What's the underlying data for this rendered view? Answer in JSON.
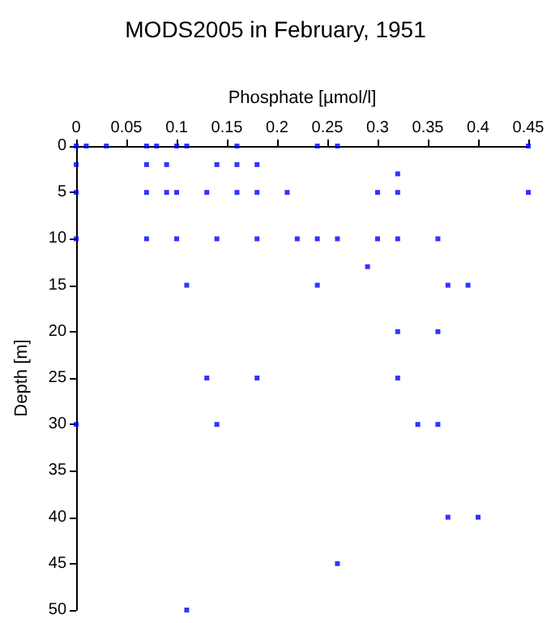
{
  "chart_data": {
    "type": "scatter",
    "title": "MODS2005 in February, 1951",
    "xlabel": "Phosphate [µmol/l]",
    "ylabel": "Depth [m]",
    "x": [
      0,
      0.01,
      0.03,
      0.07,
      0.08,
      0.1,
      0.11,
      0.16,
      0.24,
      0.26,
      0.45,
      0,
      0.07,
      0.09,
      0.14,
      0.16,
      0.18,
      0.32,
      0,
      0.07,
      0.09,
      0.1,
      0.13,
      0.16,
      0.18,
      0.21,
      0.3,
      0.32,
      0.45,
      0,
      0.07,
      0.1,
      0.14,
      0.18,
      0.22,
      0.24,
      0.26,
      0.3,
      0.32,
      0.36,
      0.29,
      0.11,
      0.24,
      0.37,
      0.39,
      0.32,
      0.36,
      0.13,
      0.18,
      0.32,
      0,
      0.14,
      0.34,
      0.36,
      0.37,
      0.4,
      0.26,
      0.11
    ],
    "series": [
      {
        "color": "#0000ff",
        "values": [
          0,
          0,
          0,
          0,
          0,
          0,
          0,
          0,
          0,
          0,
          0,
          2,
          2,
          2,
          2,
          2,
          2,
          3,
          5,
          5,
          5,
          5,
          5,
          5,
          5,
          5,
          5,
          5,
          5,
          10,
          10,
          10,
          10,
          10,
          10,
          10,
          10,
          10,
          10,
          10,
          13,
          15,
          15,
          15,
          15,
          20,
          20,
          25,
          25,
          25,
          30,
          30,
          30,
          30,
          40,
          40,
          45,
          50
        ]
      }
    ],
    "xlim": [
      0,
      0.45
    ],
    "xticks": [
      0,
      0.05,
      0.1,
      0.15,
      0.2,
      0.25,
      0.3,
      0.35,
      0.4,
      0.45
    ],
    "ylim": [
      50,
      0
    ],
    "yticks": [
      0,
      5,
      10,
      15,
      20,
      25,
      30,
      35,
      40,
      45,
      50
    ],
    "marker": "square",
    "grid": false
  }
}
